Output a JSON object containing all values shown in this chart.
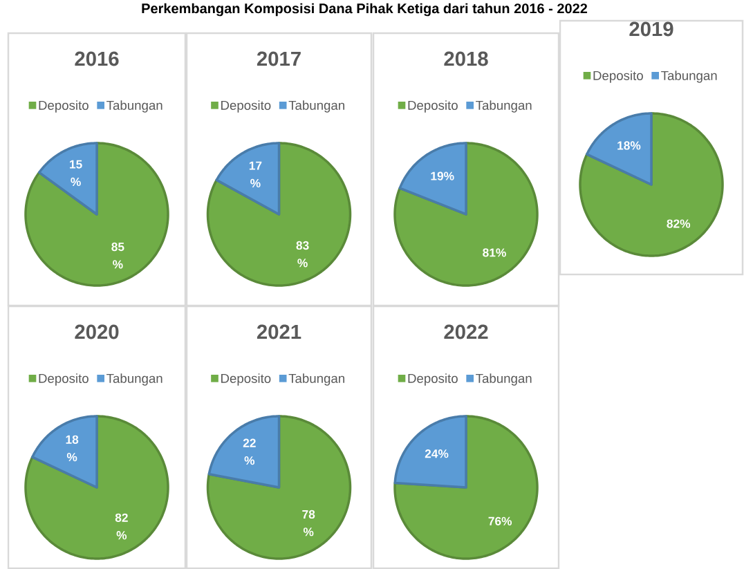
{
  "chart_data": [
    {
      "type": "pie",
      "title": "2016",
      "categories": [
        "Deposito",
        "Tabungan"
      ],
      "values": [
        85,
        15
      ],
      "colors": [
        "#70ad47",
        "#5b9bd5"
      ],
      "legend": "top",
      "value_labels": [
        "85 %",
        "15 %"
      ],
      "annotations": [
        "Perkembangan Komposisi Dana Pihak Ketiga dari tahun 2016 - 2022"
      ]
    },
    {
      "type": "pie",
      "title": "2017",
      "categories": [
        "Deposito",
        "Tabungan"
      ],
      "values": [
        83,
        17
      ],
      "colors": [
        "#70ad47",
        "#5b9bd5"
      ],
      "legend": "top",
      "value_labels": [
        "83 %",
        "17 %"
      ]
    },
    {
      "type": "pie",
      "title": "2018",
      "categories": [
        "Deposito",
        "Tabungan"
      ],
      "values": [
        81,
        19
      ],
      "colors": [
        "#70ad47",
        "#5b9bd5"
      ],
      "legend": "top",
      "value_labels": [
        "81%",
        "19%"
      ]
    },
    {
      "type": "pie",
      "title": "2019",
      "categories": [
        "Deposito",
        "Tabungan"
      ],
      "values": [
        82,
        18
      ],
      "colors": [
        "#70ad47",
        "#5b9bd5"
      ],
      "legend": "top",
      "value_labels": [
        "82%",
        "18%"
      ]
    },
    {
      "type": "pie",
      "title": "2020",
      "categories": [
        "Deposito",
        "Tabungan"
      ],
      "values": [
        82,
        18
      ],
      "colors": [
        "#70ad47",
        "#5b9bd5"
      ],
      "legend": "top",
      "value_labels": [
        "82 %",
        "18 %"
      ]
    },
    {
      "type": "pie",
      "title": "2021",
      "categories": [
        "Deposito",
        "Tabungan"
      ],
      "values": [
        78,
        22
      ],
      "colors": [
        "#70ad47",
        "#5b9bd5"
      ],
      "legend": "top",
      "value_labels": [
        "78 %",
        "22 %"
      ]
    },
    {
      "type": "pie",
      "title": "2022",
      "categories": [
        "Deposito",
        "Tabungan"
      ],
      "values": [
        76,
        24
      ],
      "colors": [
        "#70ad47",
        "#5b9bd5"
      ],
      "legend": "top",
      "value_labels": [
        "76%",
        "24%"
      ]
    }
  ]
}
